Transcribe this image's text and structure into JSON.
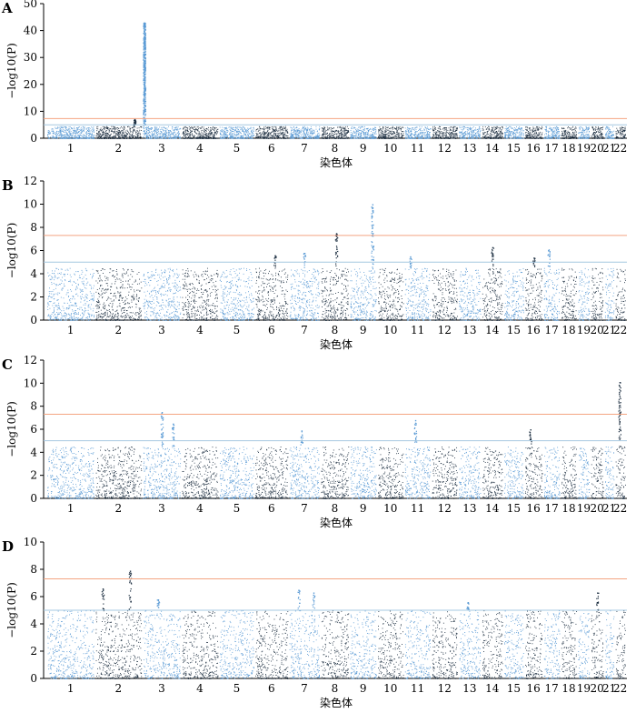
{
  "chart_data": [
    {
      "type": "scatter",
      "panel": "A",
      "xlabel": "染色体",
      "ylabel": "−log10(P)",
      "ylim": [
        0,
        50
      ],
      "yticks": [
        0,
        10,
        20,
        30,
        40,
        50
      ],
      "chromosomes": [
        "1",
        "2",
        "3",
        "4",
        "5",
        "6",
        "7",
        "8",
        "9",
        "10",
        "11",
        "12",
        "13",
        "14",
        "15",
        "16",
        "17",
        "18",
        "19",
        "20",
        "21",
        "22"
      ],
      "threshold_lines": [
        {
          "value": 7.3,
          "color": "#f4a582"
        },
        {
          "value": 5,
          "color": "#a6c8e0"
        }
      ],
      "colors": [
        "#5b9bd5",
        "#1c2e40"
      ],
      "background_max": 4.5,
      "peaks": [
        {
          "chromosome": "2",
          "position": 0.85,
          "max": 7.2
        },
        {
          "chromosome": "3",
          "position": 0.03,
          "max": 43
        }
      ]
    },
    {
      "type": "scatter",
      "panel": "B",
      "xlabel": "染色体",
      "ylabel": "−log10(P)",
      "ylim": [
        0,
        12
      ],
      "yticks": [
        0,
        2,
        4,
        6,
        8,
        10,
        12
      ],
      "chromosomes": [
        "1",
        "2",
        "3",
        "4",
        "5",
        "6",
        "7",
        "8",
        "9",
        "10",
        "11",
        "12",
        "13",
        "14",
        "15",
        "16",
        "17",
        "18",
        "19",
        "20",
        "21",
        "22"
      ],
      "threshold_lines": [
        {
          "value": 7.3,
          "color": "#f4a582"
        },
        {
          "value": 5,
          "color": "#a6c8e0"
        }
      ],
      "colors": [
        "#5b9bd5",
        "#1c2e40"
      ],
      "background_max": 4.5,
      "peaks": [
        {
          "chromosome": "6",
          "position": 0.6,
          "max": 5.6
        },
        {
          "chromosome": "7",
          "position": 0.5,
          "max": 5.8
        },
        {
          "chromosome": "8",
          "position": 0.55,
          "max": 7.5
        },
        {
          "chromosome": "9",
          "position": 0.85,
          "max": 10
        },
        {
          "chromosome": "11",
          "position": 0.2,
          "max": 5.5
        },
        {
          "chromosome": "14",
          "position": 0.5,
          "max": 6.3
        },
        {
          "chromosome": "17",
          "position": 0.3,
          "max": 6.1
        },
        {
          "chromosome": "16",
          "position": 0.5,
          "max": 5.4
        }
      ]
    },
    {
      "type": "scatter",
      "panel": "C",
      "xlabel": "染色体",
      "ylabel": "−log10(P)",
      "ylim": [
        0,
        12
      ],
      "yticks": [
        0,
        2,
        4,
        6,
        8,
        10,
        12
      ],
      "chromosomes": [
        "1",
        "2",
        "3",
        "4",
        "5",
        "6",
        "7",
        "8",
        "9",
        "10",
        "11",
        "12",
        "13",
        "14",
        "15",
        "16",
        "17",
        "18",
        "19",
        "20",
        "21",
        "22"
      ],
      "threshold_lines": [
        {
          "value": 7.3,
          "color": "#f4a582"
        },
        {
          "value": 5,
          "color": "#a6c8e0"
        }
      ],
      "colors": [
        "#5b9bd5",
        "#1c2e40"
      ],
      "background_max": 4.5,
      "peaks": [
        {
          "chromosome": "3",
          "position": 0.5,
          "max": 7.5
        },
        {
          "chromosome": "3",
          "position": 0.8,
          "max": 6.5
        },
        {
          "chromosome": "7",
          "position": 0.4,
          "max": 5.9
        },
        {
          "chromosome": "11",
          "position": 0.4,
          "max": 6.8
        },
        {
          "chromosome": "16",
          "position": 0.3,
          "max": 6.0
        },
        {
          "chromosome": "22",
          "position": 0.4,
          "max": 10.1
        }
      ]
    },
    {
      "type": "scatter",
      "panel": "D",
      "xlabel": "染色体",
      "ylabel": "−log10(P)",
      "ylim": [
        0,
        10
      ],
      "yticks": [
        0,
        2,
        4,
        6,
        8,
        10
      ],
      "chromosomes": [
        "1",
        "2",
        "3",
        "4",
        "5",
        "6",
        "7",
        "8",
        "9",
        "10",
        "11",
        "12",
        "13",
        "14",
        "15",
        "16",
        "17",
        "18",
        "19",
        "20",
        "21",
        "22"
      ],
      "threshold_lines": [
        {
          "value": 7.3,
          "color": "#f4a582"
        },
        {
          "value": 5,
          "color": "#a6c8e0"
        }
      ],
      "colors": [
        "#5b9bd5",
        "#1c2e40"
      ],
      "background_max": 5.0,
      "peaks": [
        {
          "chromosome": "2",
          "position": 0.15,
          "max": 6.6
        },
        {
          "chromosome": "2",
          "position": 0.75,
          "max": 7.9
        },
        {
          "chromosome": "3",
          "position": 0.4,
          "max": 5.8
        },
        {
          "chromosome": "7",
          "position": 0.3,
          "max": 6.5
        },
        {
          "chromosome": "7",
          "position": 0.8,
          "max": 6.3
        },
        {
          "chromosome": "20",
          "position": 0.5,
          "max": 6.3
        },
        {
          "chromosome": "13",
          "position": 0.4,
          "max": 5.6
        }
      ]
    }
  ]
}
